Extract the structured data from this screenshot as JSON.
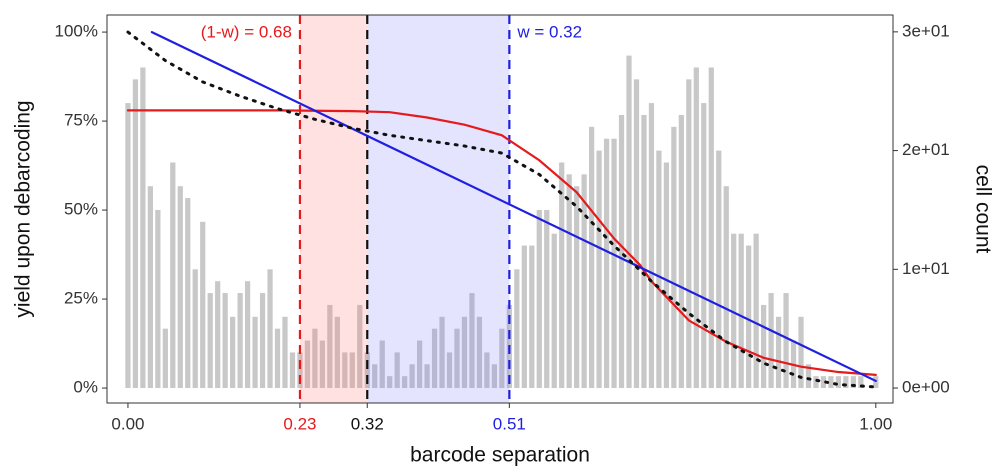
{
  "chart_data": {
    "type": "line",
    "xlabel": "barcode separation",
    "ylabel": "yield upon debarcoding",
    "y2label": "cell count",
    "xlim": [
      -0.028,
      1.023
    ],
    "ylim": [
      -4.2,
      104.8
    ],
    "y2lim": [
      -1.26,
      31.42
    ],
    "xticks": [
      {
        "value": 0,
        "label": "0.00"
      },
      0.23,
      0.32,
      0.51,
      {
        "value": 1,
        "label": "1.00"
      }
    ],
    "xtick_colors": [
      "#333333",
      "#e41a1c",
      "#111111",
      "#1f1fe0",
      "#333333"
    ],
    "yticks": [
      {
        "value": 0,
        "label": "0%"
      },
      {
        "value": 25,
        "label": "25%"
      },
      {
        "value": 50,
        "label": "50%"
      },
      {
        "value": 75,
        "label": "75%"
      },
      {
        "value": 100,
        "label": "100%"
      }
    ],
    "y2ticks": [
      {
        "value": 0,
        "label": "0e+00"
      },
      {
        "value": 10,
        "label": "1e+01"
      },
      {
        "value": 20,
        "label": "2e+01"
      },
      {
        "value": 30,
        "label": "3e+01"
      }
    ],
    "bands": [
      {
        "from": 0.23,
        "to": 0.32,
        "color": "rgba(255,120,120,0.22)"
      },
      {
        "from": 0.32,
        "to": 0.51,
        "color": "rgba(120,120,255,0.2)"
      }
    ],
    "vlines": [
      {
        "x": 0.23,
        "color": "#e41a1c",
        "label": "(1-w) = 0.68",
        "label_side": "left"
      },
      {
        "x": 0.32,
        "color": "#111111"
      },
      {
        "x": 0.51,
        "color": "#1f1fe0",
        "label": "w = 0.32",
        "label_side": "right"
      }
    ],
    "series": [
      {
        "type": "histogram",
        "axis": "y2",
        "color": "#c8c8c8",
        "bins": [
          -0.005,
          0.005,
          0.015,
          0.025,
          0.035,
          0.045,
          0.055,
          0.065,
          0.075,
          0.085,
          0.095,
          0.105,
          0.115,
          0.125,
          0.135,
          0.145,
          0.155,
          0.165,
          0.175,
          0.185,
          0.195,
          0.205,
          0.215,
          0.225,
          0.235,
          0.245,
          0.255,
          0.265,
          0.275,
          0.285,
          0.295,
          0.305,
          0.315,
          0.325,
          0.335,
          0.345,
          0.355,
          0.365,
          0.375,
          0.385,
          0.395,
          0.405,
          0.415,
          0.425,
          0.435,
          0.445,
          0.455,
          0.465,
          0.475,
          0.485,
          0.495,
          0.505,
          0.515,
          0.525,
          0.535,
          0.545,
          0.555,
          0.565,
          0.575,
          0.585,
          0.595,
          0.605,
          0.615,
          0.625,
          0.635,
          0.645,
          0.655,
          0.665,
          0.675,
          0.685,
          0.695,
          0.705,
          0.715,
          0.725,
          0.735,
          0.745,
          0.755,
          0.765,
          0.775,
          0.785,
          0.795,
          0.805,
          0.815,
          0.825,
          0.835,
          0.845,
          0.855,
          0.865,
          0.875,
          0.885,
          0.895,
          0.905,
          0.915,
          0.925,
          0.935,
          0.945,
          0.955,
          0.965,
          0.975,
          0.985,
          0.995,
          1.005
        ],
        "values": [
          24,
          26,
          27,
          17,
          15,
          5,
          19,
          17,
          16,
          10,
          14,
          8,
          9,
          8,
          6,
          8,
          9,
          6,
          8,
          10,
          5,
          6,
          3,
          3,
          4,
          5,
          4,
          7,
          6,
          3,
          3,
          7,
          3,
          2,
          4,
          1,
          3,
          1,
          2,
          4,
          2,
          5,
          6,
          3,
          5,
          6,
          8,
          6,
          3,
          2,
          5,
          7,
          10,
          12,
          12,
          15,
          15,
          13,
          19,
          18,
          17,
          18,
          22,
          20,
          21,
          21,
          23,
          28,
          26,
          23,
          24,
          20,
          19,
          22,
          23,
          26,
          27,
          24,
          27,
          20,
          17,
          13,
          13,
          12,
          13,
          7,
          8,
          6,
          8,
          4,
          6,
          2,
          1,
          1,
          1,
          1,
          1,
          1,
          1,
          0,
          1
        ]
      },
      {
        "type": "line",
        "color": "#e41a1c",
        "dash": "solid",
        "x": [
          0,
          0.1,
          0.2,
          0.3,
          0.35,
          0.4,
          0.45,
          0.5,
          0.55,
          0.6,
          0.65,
          0.685,
          0.7,
          0.75,
          0.8,
          0.85,
          0.9,
          0.95,
          1.0
        ],
        "values": [
          78,
          78,
          78,
          77.8,
          77.5,
          76,
          74,
          71,
          64,
          55,
          42,
          34.5,
          30,
          19,
          13,
          8.5,
          6,
          4.5,
          3.7
        ]
      },
      {
        "type": "line",
        "color": "#1f1fe0",
        "dash": "solid",
        "x": [
          0.032,
          1.0
        ],
        "values": [
          100,
          2
        ]
      },
      {
        "type": "line",
        "color": "#111111",
        "dash": "dotted",
        "x": [
          0,
          0.05,
          0.1,
          0.15,
          0.2,
          0.25,
          0.3,
          0.35,
          0.4,
          0.45,
          0.5,
          0.55,
          0.6,
          0.65,
          0.7,
          0.75,
          0.8,
          0.85,
          0.9,
          0.95,
          1.0
        ],
        "values": [
          100,
          92,
          86,
          82,
          78.5,
          75.5,
          73,
          71,
          69.5,
          68,
          66,
          60,
          51,
          40,
          30,
          21,
          13,
          7,
          3,
          1,
          0.3
        ]
      }
    ]
  }
}
